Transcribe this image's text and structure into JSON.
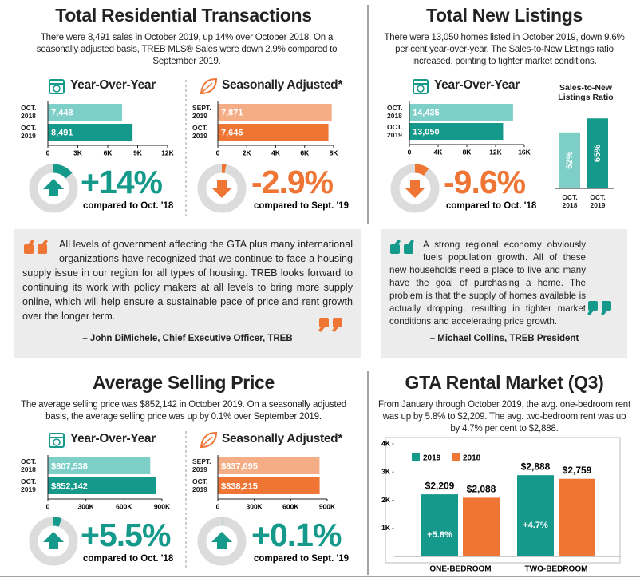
{
  "transactions": {
    "title": "Total Residential Transactions",
    "text": "There were 8,491 sales in October 2019, up 14% over October 2018. On a seasonally adjusted basis, TREB MLS® Sales were down 2.9% compared to September 2019.",
    "yoy": {
      "type": "bar",
      "heading": "Year-Over-Year",
      "categories": [
        "OCT. 2018",
        "OCT. 2019"
      ],
      "values": [
        7448,
        8491
      ],
      "value_labels": [
        "7,448",
        "8,491"
      ],
      "colors": [
        "#7fcfc9",
        "#14998b"
      ],
      "xlim": [
        0,
        12000
      ],
      "xticks": [
        0,
        {
          "value": 3000,
          "label": "3K"
        },
        {
          "value": 6000,
          "label": "6K"
        },
        {
          "value": 9000,
          "label": "9K"
        },
        {
          "value": 12000,
          "label": "12K"
        }
      ],
      "change": 14,
      "change_label": "+14%",
      "compare": "compared to Oct. '18"
    },
    "sa": {
      "type": "bar",
      "heading": "Seasonally Adjusted*",
      "categories": [
        "SEPT. 2019",
        "OCT. 2019"
      ],
      "values": [
        7871,
        7645
      ],
      "value_labels": [
        "7,871",
        "7,645"
      ],
      "colors": [
        "#f5ad85",
        "#ef7535"
      ],
      "xlim": [
        0,
        8000
      ],
      "xticks": [
        0,
        {
          "value": 2000,
          "label": "2K"
        },
        {
          "value": 4000,
          "label": "4K"
        },
        {
          "value": 6000,
          "label": "6K"
        },
        {
          "value": 8000,
          "label": "8K"
        }
      ],
      "change": -2.9,
      "change_label": "-2.9%",
      "compare": "compared to Sept. '19"
    }
  },
  "listings": {
    "title": "Total New Listings",
    "text": "There were 13,050 homes listed in October 2019, down 9.6% per cent year-over-year. The Sales-to-New Listings ratio increased, pointing to tighter market conditions.",
    "yoy": {
      "type": "bar",
      "heading": "Year-Over-Year",
      "categories": [
        "OCT. 2018",
        "OCT. 2019"
      ],
      "values": [
        14435,
        13050
      ],
      "value_labels": [
        "14,435",
        "13,050"
      ],
      "colors": [
        "#7fcfc9",
        "#14998b"
      ],
      "xlim": [
        0,
        16000
      ],
      "xticks": [
        0,
        {
          "value": 4000,
          "label": "4K"
        },
        {
          "value": 8000,
          "label": "8K"
        },
        {
          "value": 12000,
          "label": "12K"
        },
        {
          "value": 16000,
          "label": "16K"
        }
      ],
      "change": -9.6,
      "change_label": "-9.6%",
      "compare": "compared to Oct. '18",
      "change_color": "#ef7535"
    },
    "ratio": {
      "type": "bar",
      "title": "Sales-to-New Listings Ratio",
      "categories": [
        "OCT. 2018",
        "OCT. 2019"
      ],
      "values": [
        52,
        65
      ],
      "value_labels": [
        "52%",
        "65%"
      ],
      "colors": [
        "#7fcfc9",
        "#14998b"
      ],
      "ylim": [
        0,
        100
      ]
    }
  },
  "quotes": [
    {
      "text": "All levels of government affecting the GTA plus many international organizations have recognized that we continue to face a housing supply issue in our region for all types of housing. TREB looks forward to continuing its work with policy makers at all levels to bring more supply online, which will help ensure a sustainable pace of price and rent growth over the longer term.",
      "author": "– John DiMichele, Chief Executive Officer, TREB"
    },
    {
      "text": "A strong regional economy obviously fuels population growth. All of these new households need a place to live and many have the goal of purchasing a home. The problem is that the supply of homes available is actually dropping, resulting in tighter market conditions and accelerating price growth.",
      "author": "– Michael Collins, TREB President"
    }
  ],
  "price": {
    "title": "Average Selling Price",
    "text": "The average selling price was $852,142 in October 2019. On a seasonally adjusted basis, the average selling price was up by 0.1% over September 2019.",
    "yoy": {
      "type": "bar",
      "heading": "Year-Over-Year",
      "categories": [
        "OCT. 2018",
        "OCT. 2019"
      ],
      "values": [
        807538,
        852142
      ],
      "value_labels": [
        "$807,538",
        "$852,142"
      ],
      "colors": [
        "#7fcfc9",
        "#14998b"
      ],
      "xlim": [
        0,
        900000
      ],
      "xticks": [
        0,
        {
          "value": 300000,
          "label": "300K"
        },
        {
          "value": 600000,
          "label": "600K"
        },
        {
          "value": 900000,
          "label": "900K"
        }
      ],
      "change": 5.5,
      "change_label": "+5.5%",
      "compare": "compared to Oct. '18"
    },
    "sa": {
      "type": "bar",
      "heading": "Seasonally Adjusted*",
      "categories": [
        "SEPT. 2019",
        "OCT. 2019"
      ],
      "values": [
        837095,
        838215
      ],
      "value_labels": [
        "$837,095",
        "$838,215"
      ],
      "colors": [
        "#f5ad85",
        "#ef7535"
      ],
      "xlim": [
        0,
        900000
      ],
      "xticks": [
        0,
        {
          "value": 300000,
          "label": "300K"
        },
        {
          "value": 600000,
          "label": "600K"
        },
        {
          "value": 900000,
          "label": "900K"
        }
      ],
      "change": 0.1,
      "change_label": "+0.1%",
      "compare": "compared to Sept. '19",
      "change_color": "#14998b"
    }
  },
  "rental": {
    "title": "GTA Rental Market (Q3)",
    "text": "From January through October 2019, the avg. one-bedroom rent was up by 5.8% to $2,209. The avg. two-bedroom rent was up by 4.7% per cent to $2,888.",
    "chart": {
      "type": "bar",
      "categories": [
        "ONE-BEDROOM",
        "TWO-BEDROOM"
      ],
      "series": [
        {
          "name": "2019",
          "color": "#14998b",
          "values": [
            2209,
            2888
          ],
          "value_labels": [
            "$2,209",
            "$2,888"
          ],
          "growth_labels": [
            "+5.8%",
            "+4.7%"
          ]
        },
        {
          "name": "2018",
          "color": "#ef7535",
          "values": [
            2088,
            2759
          ],
          "value_labels": [
            "$2,088",
            "$2,759"
          ]
        }
      ],
      "ylim": [
        0,
        4000
      ],
      "yticks": [
        {
          "value": 1000,
          "label": "1K"
        },
        {
          "value": 2000,
          "label": "2K"
        },
        {
          "value": 3000,
          "label": "3K"
        },
        {
          "value": 4000,
          "label": "4K"
        }
      ]
    }
  }
}
